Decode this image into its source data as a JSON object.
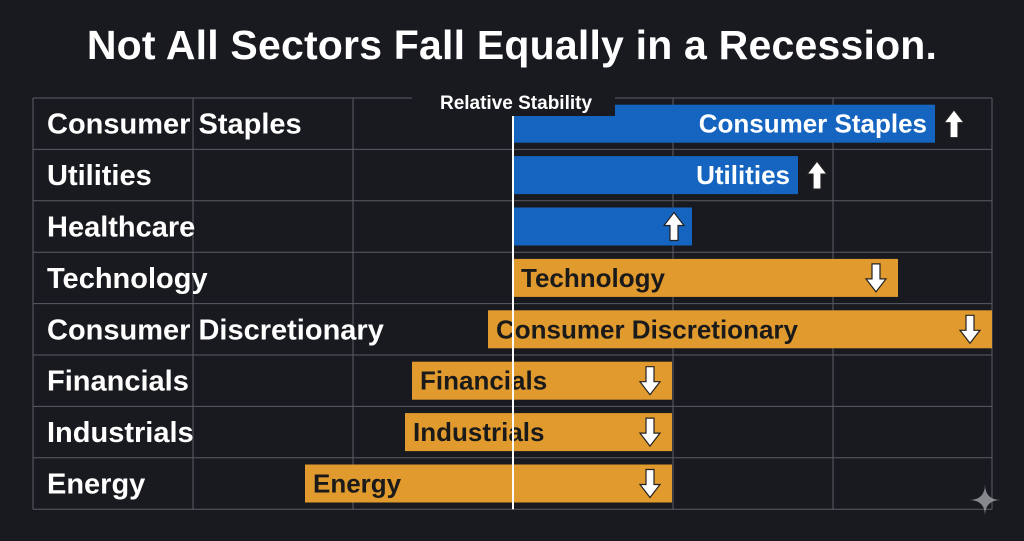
{
  "title": "Not All Sectors Fall Equally in a Recession.",
  "colors": {
    "background": "#181a1f",
    "grid": "#5a5d64",
    "stable": "#1565c0",
    "decline": "#e09a2e",
    "stable_text": "#ffffff",
    "decline_text": "#1a1a1a",
    "arrow": "#ffffff"
  },
  "chart_data": {
    "type": "bar",
    "orientation": "horizontal",
    "center_line_label": "Relative Stability",
    "categories": [
      "Consumer Staples",
      "Utilities",
      "Healthcare",
      "Technology",
      "Consumer Discretionary",
      "Financials",
      "Industrials",
      "Energy"
    ],
    "bars": [
      {
        "category": "Consumer Staples",
        "label": "Consumer Staples",
        "direction": "up",
        "trend": "stable"
      },
      {
        "category": "Utilities",
        "label": "Utilities",
        "direction": "up",
        "trend": "stable"
      },
      {
        "category": "Healthcare",
        "label": "",
        "direction": "up",
        "trend": "stable"
      },
      {
        "category": "Technology",
        "label": "Technology",
        "direction": "down",
        "trend": "decline"
      },
      {
        "category": "Consumer Discretionary",
        "label": "Consumer Discretionary",
        "direction": "down",
        "trend": "decline"
      },
      {
        "category": "Financials",
        "label": "Financials",
        "direction": "down",
        "trend": "decline"
      },
      {
        "category": "Industrials",
        "label": "Industrials",
        "direction": "down",
        "trend": "decline"
      },
      {
        "category": "Energy",
        "label": "Energy",
        "direction": "down",
        "trend": "decline"
      }
    ],
    "grid": true,
    "legend": "none"
  }
}
